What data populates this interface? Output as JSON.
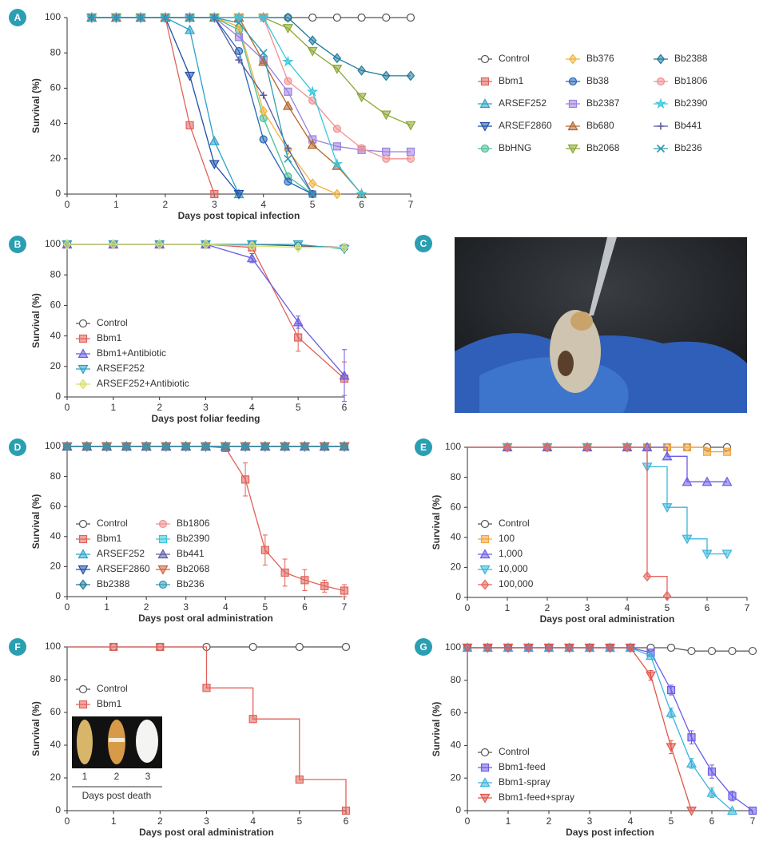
{
  "chart_data": [
    {
      "type": "line",
      "label": "A",
      "xlabel": "Days post topical infection",
      "ylabel": "Survival (%)",
      "xlim": [
        0,
        7
      ],
      "xticks": [
        0,
        1,
        2,
        3,
        4,
        5,
        6,
        7
      ],
      "ylim": [
        0,
        100
      ],
      "yticks": [
        0,
        20,
        40,
        60,
        80,
        100
      ],
      "x": [
        0.5,
        1,
        1.5,
        2,
        2.5,
        3,
        3.5,
        4,
        4.5,
        5,
        5.5,
        6,
        6.5,
        7
      ],
      "series": [
        {
          "name": "Control",
          "color": "#555555",
          "marker": "circle-open",
          "values": [
            100,
            100,
            100,
            100,
            100,
            100,
            100,
            100,
            100,
            100,
            100,
            100,
            100,
            100
          ]
        },
        {
          "name": "Bbm1",
          "color": "#e0625a",
          "marker": "square",
          "values": [
            100,
            100,
            100,
            100,
            39,
            0,
            null,
            null,
            null,
            null,
            null,
            null,
            null,
            null
          ]
        },
        {
          "name": "ARSEF252",
          "color": "#2aa1c8",
          "marker": "triangle-up",
          "values": [
            100,
            100,
            100,
            100,
            93,
            30,
            0,
            null,
            null,
            null,
            null,
            null,
            null,
            null
          ]
        },
        {
          "name": "ARSEF2860",
          "color": "#1f4fa8",
          "marker": "triangle-down",
          "values": [
            100,
            100,
            100,
            100,
            67,
            17,
            0,
            null,
            null,
            null,
            null,
            null,
            null,
            null
          ]
        },
        {
          "name": "BbHNG",
          "color": "#4bbf97",
          "marker": "circle",
          "values": [
            100,
            100,
            100,
            100,
            100,
            100,
            93,
            43,
            10,
            0,
            null,
            null,
            null,
            null
          ]
        },
        {
          "name": "Bb376",
          "color": "#f3b23a",
          "marker": "diamond",
          "values": [
            100,
            100,
            100,
            100,
            100,
            100,
            95,
            47,
            25,
            6,
            0,
            null,
            null,
            null
          ]
        },
        {
          "name": "Bb38",
          "color": "#2564b8",
          "marker": "circle",
          "values": [
            100,
            100,
            100,
            100,
            100,
            100,
            81,
            31,
            7,
            0,
            null,
            null,
            null,
            null
          ]
        },
        {
          "name": "Bb2387",
          "color": "#9a7fe0",
          "marker": "square",
          "values": [
            100,
            100,
            100,
            100,
            100,
            100,
            89,
            76,
            58,
            31,
            27,
            25,
            24,
            24
          ]
        },
        {
          "name": "Bb680",
          "color": "#b4652a",
          "marker": "triangle-up",
          "values": [
            100,
            100,
            100,
            100,
            100,
            100,
            100,
            75,
            50,
            28,
            16,
            0,
            null,
            null
          ]
        },
        {
          "name": "Bb2068",
          "color": "#8aa62e",
          "marker": "triangle-down",
          "values": [
            100,
            100,
            100,
            100,
            100,
            100,
            100,
            100,
            94,
            81,
            71,
            55,
            45,
            39
          ]
        },
        {
          "name": "Bb2388",
          "color": "#1f7a9a",
          "marker": "diamond",
          "values": [
            100,
            100,
            100,
            100,
            100,
            100,
            100,
            100,
            100,
            87,
            77,
            70,
            67,
            67
          ]
        },
        {
          "name": "Bb1806",
          "color": "#f09090",
          "marker": "circle",
          "values": [
            100,
            100,
            100,
            100,
            100,
            100,
            100,
            100,
            64,
            53,
            37,
            26,
            20,
            20
          ]
        },
        {
          "name": "Bb2390",
          "color": "#3ac6d9",
          "marker": "star",
          "values": [
            100,
            100,
            100,
            100,
            100,
            100,
            100,
            100,
            75,
            58,
            17,
            0,
            null,
            null
          ]
        },
        {
          "name": "Bb441",
          "color": "#5a5aa0",
          "marker": "plus",
          "values": [
            100,
            100,
            100,
            100,
            100,
            100,
            76,
            56,
            26,
            0,
            null,
            null,
            null,
            null
          ]
        },
        {
          "name": "Bb236",
          "color": "#2f9bb5",
          "marker": "x",
          "values": [
            100,
            100,
            100,
            100,
            100,
            100,
            97,
            80,
            20,
            0,
            null,
            null,
            null,
            null
          ]
        }
      ]
    },
    {
      "type": "line",
      "label": "B",
      "xlabel": "Days post foliar feeding",
      "ylabel": "Survival (%)",
      "xlim": [
        0,
        6
      ],
      "xticks": [
        0,
        1,
        2,
        3,
        4,
        5,
        6
      ],
      "ylim": [
        0,
        100
      ],
      "yticks": [
        0,
        20,
        40,
        60,
        80,
        100
      ],
      "x": [
        0,
        1,
        2,
        3,
        4,
        5,
        6
      ],
      "series": [
        {
          "name": "Control",
          "color": "#555555",
          "marker": "circle-open",
          "values": [
            100,
            100,
            100,
            100,
            100,
            99,
            98
          ]
        },
        {
          "name": "Bbm1",
          "color": "#e0625a",
          "marker": "square",
          "values": [
            100,
            100,
            100,
            100,
            98,
            39,
            12
          ],
          "errors": [
            null,
            null,
            null,
            null,
            2,
            9,
            11
          ]
        },
        {
          "name": "Bbm1+Antibiotic",
          "color": "#6a5ce0",
          "marker": "triangle-up",
          "values": [
            100,
            100,
            100,
            100,
            91,
            49,
            14
          ],
          "errors": [
            null,
            null,
            null,
            null,
            3,
            4,
            17
          ]
        },
        {
          "name": "ARSEF252",
          "color": "#2aa1c8",
          "marker": "triangle-down",
          "values": [
            100,
            100,
            100,
            100,
            100,
            100,
            97
          ]
        },
        {
          "name": "ARSEF252+Antibiotic",
          "color": "#d8e06a",
          "marker": "diamond",
          "values": [
            100,
            100,
            100,
            100,
            99,
            98,
            98
          ]
        }
      ]
    },
    {
      "type": "line",
      "label": "D",
      "xlabel": "Days post oral administration",
      "ylabel": "Survival (%)",
      "xlim": [
        0,
        7
      ],
      "xticks": [
        0,
        1,
        2,
        3,
        4,
        5,
        6,
        7
      ],
      "ylim": [
        0,
        100
      ],
      "yticks": [
        0,
        20,
        40,
        60,
        80,
        100
      ],
      "x": [
        0,
        0.5,
        1,
        1.5,
        2,
        2.5,
        3,
        3.5,
        4,
        4.5,
        5,
        5.5,
        6,
        6.5,
        7
      ],
      "series": [
        {
          "name": "Control",
          "color": "#555555",
          "marker": "circle-open",
          "values": [
            100,
            100,
            100,
            100,
            100,
            100,
            100,
            100,
            100,
            100,
            100,
            100,
            100,
            100,
            100
          ]
        },
        {
          "name": "Bbm1",
          "color": "#e0625a",
          "marker": "square",
          "values": [
            100,
            100,
            100,
            100,
            100,
            100,
            100,
            100,
            99,
            78,
            31,
            16,
            11,
            7,
            4
          ],
          "errors": [
            null,
            null,
            null,
            null,
            null,
            null,
            null,
            null,
            null,
            11,
            10,
            9,
            7,
            4,
            4
          ]
        },
        {
          "name": "ARSEF252",
          "color": "#2aa1c8",
          "marker": "triangle-up",
          "values": [
            100,
            100,
            100,
            100,
            100,
            100,
            100,
            100,
            100,
            100,
            100,
            100,
            100,
            100,
            100
          ]
        },
        {
          "name": "ARSEF2860",
          "color": "#1f4fa8",
          "marker": "triangle-down",
          "values": [
            100,
            100,
            100,
            100,
            100,
            100,
            100,
            100,
            100,
            100,
            100,
            100,
            100,
            100,
            100
          ]
        },
        {
          "name": "Bb2388",
          "color": "#1f7a9a",
          "marker": "diamond",
          "values": [
            100,
            100,
            100,
            100,
            100,
            100,
            100,
            100,
            100,
            100,
            100,
            100,
            100,
            100,
            100
          ]
        },
        {
          "name": "Bb1806",
          "color": "#f09090",
          "marker": "circle",
          "values": [
            100,
            100,
            100,
            100,
            100,
            100,
            100,
            100,
            100,
            100,
            100,
            100,
            100,
            100,
            100
          ]
        },
        {
          "name": "Bb2390",
          "color": "#3ac6d9",
          "marker": "square",
          "values": [
            100,
            100,
            100,
            100,
            100,
            100,
            100,
            100,
            100,
            100,
            100,
            100,
            100,
            100,
            100
          ]
        },
        {
          "name": "Bb441",
          "color": "#5a5aa0",
          "marker": "triangle-up",
          "values": [
            100,
            100,
            100,
            100,
            100,
            100,
            100,
            100,
            100,
            100,
            100,
            100,
            100,
            100,
            100
          ]
        },
        {
          "name": "Bb2068",
          "color": "#d0603a",
          "marker": "triangle-down",
          "values": [
            100,
            100,
            100,
            100,
            100,
            100,
            100,
            100,
            100,
            100,
            100,
            100,
            100,
            100,
            100
          ]
        },
        {
          "name": "Bb236",
          "color": "#2f9bb5",
          "marker": "circle",
          "values": [
            100,
            100,
            100,
            100,
            100,
            100,
            100,
            100,
            100,
            100,
            100,
            100,
            100,
            100,
            100
          ]
        }
      ]
    },
    {
      "type": "step",
      "label": "E",
      "xlabel": "Days post oral administration",
      "ylabel": "Survival (%)",
      "xlim": [
        0,
        7
      ],
      "xticks": [
        0,
        1,
        2,
        3,
        4,
        5,
        6,
        7
      ],
      "ylim": [
        0,
        100
      ],
      "yticks": [
        0,
        20,
        40,
        60,
        80,
        100
      ],
      "x": [
        1,
        2,
        3,
        4,
        4.5,
        5,
        5.5,
        6,
        6.5
      ],
      "series": [
        {
          "name": "Control",
          "color": "#555555",
          "marker": "circle-open",
          "values": [
            100,
            100,
            100,
            100,
            100,
            100,
            100,
            100,
            100
          ]
        },
        {
          "name": "100",
          "color": "#f2a33a",
          "marker": "square",
          "values": [
            100,
            100,
            100,
            100,
            100,
            100,
            100,
            97,
            97
          ]
        },
        {
          "name": "1,000",
          "color": "#6b5ce8",
          "marker": "triangle-up",
          "values": [
            100,
            100,
            100,
            100,
            100,
            94,
            77,
            77,
            77
          ]
        },
        {
          "name": "10,000",
          "color": "#3ab5db",
          "marker": "triangle-down",
          "values": [
            100,
            100,
            100,
            100,
            87,
            60,
            39,
            29,
            29
          ]
        },
        {
          "name": "100,000",
          "color": "#e8655a",
          "marker": "diamond",
          "values": [
            100,
            100,
            100,
            100,
            14,
            1,
            null,
            null,
            null
          ]
        }
      ]
    },
    {
      "type": "step",
      "label": "F",
      "xlabel": "Days post oral administration",
      "ylabel": "Survival (%)",
      "xlim": [
        0,
        6
      ],
      "xticks": [
        0,
        1,
        2,
        3,
        4,
        5,
        6
      ],
      "ylim": [
        0,
        100
      ],
      "yticks": [
        0,
        20,
        40,
        60,
        80,
        100
      ],
      "x": [
        1,
        2,
        3,
        4,
        5,
        6
      ],
      "series": [
        {
          "name": "Control",
          "color": "#555555",
          "marker": "circle-open",
          "values": [
            100,
            100,
            100,
            100,
            100,
            100
          ]
        },
        {
          "name": "Bbm1",
          "color": "#e0625a",
          "marker": "square",
          "values": [
            100,
            100,
            75,
            56,
            19,
            0
          ]
        }
      ],
      "inset": {
        "labels": [
          "1",
          "2",
          "3"
        ],
        "caption": "Days post death"
      }
    },
    {
      "type": "line",
      "label": "G",
      "xlabel": "Days post infection",
      "ylabel": "Survival (%)",
      "xlim": [
        0,
        7
      ],
      "xticks": [
        0,
        1,
        2,
        3,
        4,
        5,
        6,
        7
      ],
      "ylim": [
        0,
        100
      ],
      "yticks": [
        0,
        20,
        40,
        60,
        80,
        100
      ],
      "x": [
        0,
        0.5,
        1,
        1.5,
        2,
        2.5,
        3,
        3.5,
        4,
        4.5,
        5,
        5.5,
        6,
        6.5,
        7
      ],
      "series": [
        {
          "name": "Control",
          "color": "#555555",
          "marker": "circle-open",
          "values": [
            100,
            100,
            100,
            100,
            100,
            100,
            100,
            100,
            100,
            100,
            100,
            98,
            98,
            98,
            98
          ]
        },
        {
          "name": "Bbm1-feed",
          "color": "#6b5ce8",
          "marker": "square",
          "values": [
            100,
            100,
            100,
            100,
            100,
            100,
            100,
            100,
            100,
            97,
            74,
            45,
            24,
            9,
            0
          ],
          "errors": [
            null,
            null,
            null,
            null,
            null,
            null,
            null,
            null,
            null,
            null,
            3,
            4,
            4,
            3,
            null
          ]
        },
        {
          "name": "Bbm1-spray",
          "color": "#3ab5db",
          "marker": "triangle-up",
          "values": [
            100,
            100,
            100,
            100,
            100,
            100,
            100,
            100,
            100,
            95,
            60,
            29,
            11,
            0,
            null
          ],
          "errors": [
            null,
            null,
            null,
            null,
            null,
            null,
            null,
            null,
            null,
            null,
            3,
            3,
            3,
            null,
            null
          ]
        },
        {
          "name": "Bbm1-feed+spray",
          "color": "#e0564a",
          "marker": "triangle-down",
          "values": [
            100,
            100,
            100,
            100,
            100,
            100,
            100,
            100,
            100,
            83,
            39,
            0,
            null,
            null,
            null
          ],
          "errors": [
            null,
            null,
            null,
            null,
            null,
            null,
            null,
            null,
            null,
            3,
            4,
            null,
            null,
            null,
            null
          ]
        }
      ]
    }
  ],
  "image_panel": {
    "label": "C"
  }
}
